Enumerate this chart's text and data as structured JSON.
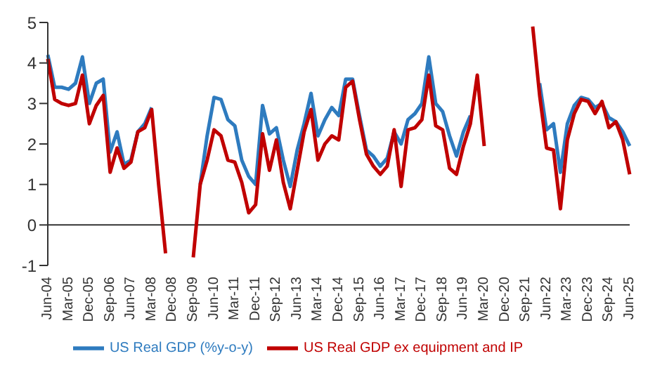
{
  "chart_data": {
    "type": "line",
    "categories": [
      "Jun-04",
      null,
      null,
      "Mar-05",
      null,
      null,
      "Dec-05",
      null,
      null,
      "Sep-06",
      null,
      null,
      "Jun-07",
      null,
      null,
      "Mar-08",
      null,
      null,
      "Dec-08",
      null,
      null,
      "Sep-09",
      null,
      null,
      "Jun-10",
      null,
      null,
      "Mar-11",
      null,
      null,
      "Dec-11",
      null,
      null,
      "Sep-12",
      null,
      null,
      "Jun-13",
      null,
      null,
      "Mar-14",
      null,
      null,
      "Dec-14",
      null,
      null,
      "Sep-15",
      null,
      null,
      "Jun-16",
      null,
      null,
      "Mar-17",
      null,
      null,
      "Dec-17",
      null,
      null,
      "Sep-18",
      null,
      null,
      "Jun-19",
      null,
      null,
      "Mar-20",
      null,
      null,
      "Dec-20",
      null,
      null,
      "Sep-21",
      null,
      null,
      "Jun-22",
      null,
      null,
      "Mar-23",
      null,
      null,
      "Dec-23",
      null,
      null,
      "Sep-24",
      null,
      null,
      "Jun-25"
    ],
    "series": [
      {
        "name": "US Real GDP (%y-o-y)",
        "color": "#2e7bbf",
        "values": [
          4.2,
          3.4,
          3.4,
          3.35,
          3.5,
          4.15,
          3.0,
          3.5,
          3.6,
          1.8,
          2.3,
          1.5,
          1.6,
          2.3,
          2.5,
          2.9,
          null,
          null,
          null,
          null,
          null,
          null,
          1.0,
          2.2,
          3.15,
          3.1,
          2.6,
          2.45,
          1.6,
          1.2,
          1.0,
          2.95,
          2.25,
          2.4,
          1.6,
          0.95,
          1.85,
          2.5,
          3.25,
          2.2,
          2.6,
          2.9,
          2.7,
          3.6,
          3.6,
          2.7,
          1.85,
          1.7,
          1.45,
          1.65,
          2.3,
          2.0,
          2.6,
          2.75,
          3.0,
          4.15,
          3.0,
          2.8,
          2.2,
          1.7,
          2.3,
          2.7,
          null,
          null,
          null,
          null,
          null,
          null,
          null,
          null,
          null,
          3.5,
          2.35,
          2.5,
          1.3,
          2.5,
          2.95,
          3.15,
          3.1,
          2.9,
          3.0,
          2.65,
          2.55,
          2.3,
          1.95
        ]
      },
      {
        "name": "US Real GDP ex equipment and IP",
        "color": "#c00000",
        "values": [
          4.1,
          3.1,
          3.0,
          2.95,
          3.0,
          3.7,
          2.5,
          2.95,
          3.2,
          1.3,
          1.9,
          1.4,
          1.55,
          2.3,
          2.4,
          2.85,
          1.0,
          -0.7,
          null,
          null,
          null,
          -0.8,
          1.0,
          1.6,
          2.35,
          2.2,
          1.6,
          1.55,
          1.05,
          0.3,
          0.5,
          2.25,
          1.35,
          2.1,
          1.05,
          0.4,
          1.35,
          2.3,
          2.85,
          1.6,
          2.0,
          2.2,
          2.1,
          3.4,
          3.55,
          2.6,
          1.75,
          1.45,
          1.25,
          1.45,
          2.35,
          0.95,
          2.35,
          2.4,
          2.6,
          3.7,
          2.45,
          2.35,
          1.4,
          1.25,
          1.95,
          2.5,
          3.7,
          1.95,
          null,
          null,
          null,
          null,
          null,
          null,
          4.9,
          3.2,
          1.9,
          1.85,
          0.4,
          2.1,
          2.75,
          3.1,
          3.05,
          2.75,
          3.05,
          2.4,
          2.55,
          2.1,
          1.25
        ]
      }
    ],
    "ylim": [
      -1,
      5
    ],
    "yticks": [
      -1,
      0,
      1,
      2,
      3,
      4,
      5
    ],
    "ref_lines": [
      {
        "axis": "y",
        "value": 0,
        "color": "#333333"
      }
    ],
    "grid": false,
    "legend": "bottom",
    "marker": "none",
    "line_style": "solid"
  }
}
